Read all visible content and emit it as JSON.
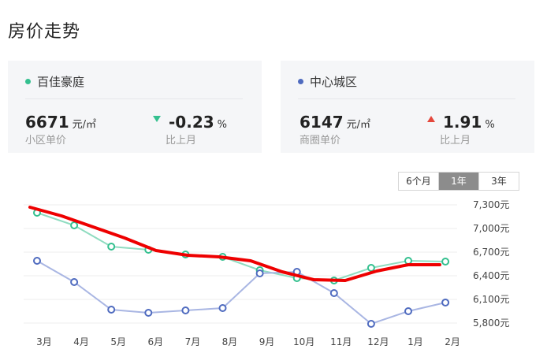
{
  "page": {
    "title": "房价走势"
  },
  "cards": [
    {
      "name": "百佳豪庭",
      "dot_color": "#34c08f",
      "price": "6671",
      "unit": "元/㎡",
      "price_label": "小区单价",
      "change": "-0.23",
      "change_unit": "%",
      "change_label": "比上月",
      "direction": "down"
    },
    {
      "name": "中心城区",
      "dot_color": "#4f6bbf",
      "price": "6147",
      "unit": "元/㎡",
      "price_label": "商圈单价",
      "change": "1.91",
      "change_unit": "%",
      "change_label": "比上月",
      "direction": "up"
    }
  ],
  "tabs": {
    "items": [
      "6个月",
      "1年",
      "3年"
    ],
    "active": "1年"
  },
  "chart_data": {
    "type": "line",
    "categories": [
      "3月",
      "4月",
      "5月",
      "6月",
      "7月",
      "8月",
      "9月",
      "10月",
      "11月",
      "12月",
      "1月",
      "2月"
    ],
    "y_ticks": [
      "7,300元",
      "7,000元",
      "6,700元",
      "6,400元",
      "6,100元",
      "5,800元"
    ],
    "ylim": [
      5800,
      7300
    ],
    "grid": true,
    "series": [
      {
        "name": "百佳豪庭",
        "color": "#8fdcc0",
        "marker_color": "#34c08f",
        "values": [
          7200,
          7040,
          6770,
          6730,
          6670,
          6640,
          6470,
          6370,
          6340,
          6500,
          6590,
          6580
        ]
      },
      {
        "name": "中心城区",
        "color": "#a9b6e3",
        "marker_color": "#4f6bbf",
        "values": [
          6590,
          6320,
          5970,
          5930,
          5960,
          5990,
          6430,
          6450,
          6180,
          5790,
          5950,
          6060
        ]
      }
    ],
    "annotation": {
      "color": "#ee0000",
      "values": [
        7270,
        7160,
        7020,
        6880,
        6720,
        6660,
        6640,
        6590,
        6450,
        6350,
        6340,
        6460,
        6540,
        6540
      ]
    }
  }
}
